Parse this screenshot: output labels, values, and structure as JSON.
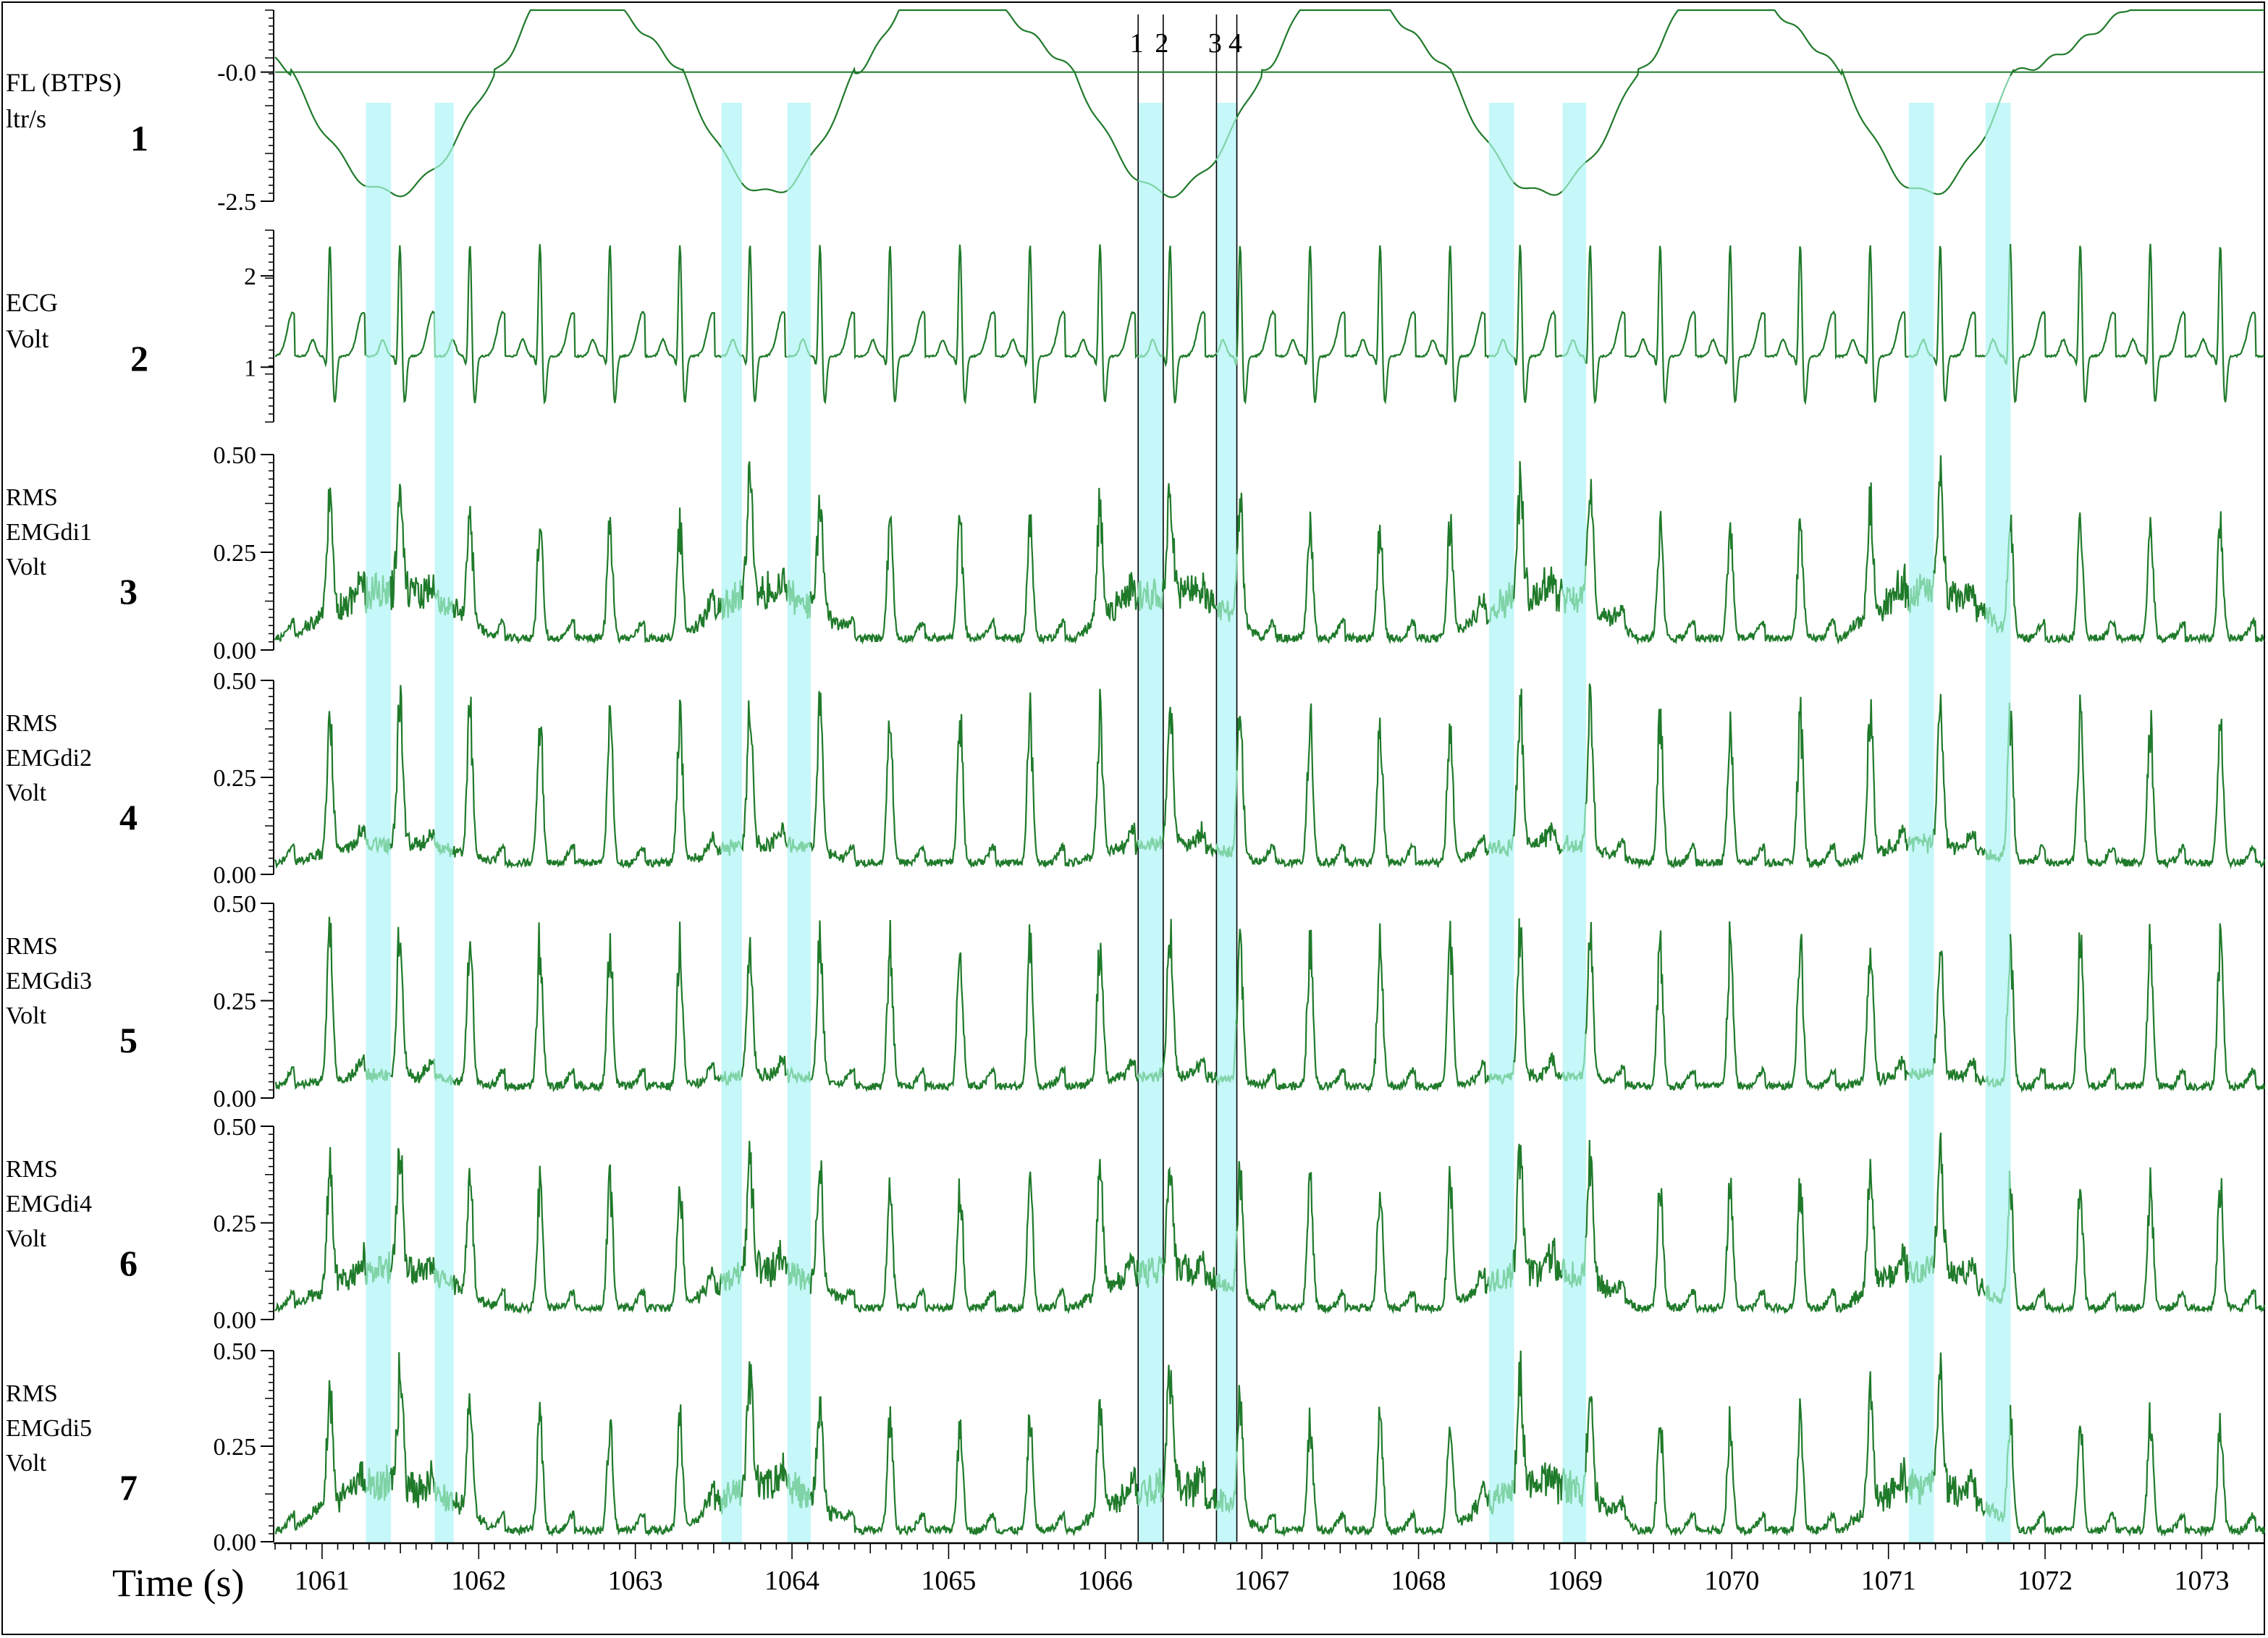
{
  "chart_data": {
    "type": "line",
    "title": "",
    "xlabel": "Time (s)",
    "xlim": [
      1060.7,
      1073.4
    ],
    "xticks": [
      1061,
      1062,
      1063,
      1064,
      1065,
      1066,
      1067,
      1068,
      1069,
      1070,
      1071,
      1072,
      1073
    ],
    "grid": false,
    "line_color": "#1f7a2a",
    "highlight_line_color": "#7fd3a6",
    "band_color": "#c6f7f9",
    "highlight_bands": [
      [
        1061.28,
        1061.44
      ],
      [
        1061.72,
        1061.84
      ],
      [
        1063.55,
        1063.68
      ],
      [
        1063.97,
        1064.12
      ],
      [
        1068.45,
        1068.61
      ],
      [
        1068.92,
        1069.07
      ],
      [
        1071.13,
        1071.29
      ],
      [
        1071.62,
        1071.78
      ],
      [
        1066.21,
        1066.37
      ],
      [
        1066.71,
        1066.84
      ]
    ],
    "markers": [
      {
        "label": "1",
        "x": 1066.21
      },
      {
        "label": "2",
        "x": 1066.37
      },
      {
        "label": "3",
        "x": 1066.71
      },
      {
        "label": "4",
        "x": 1066.84
      }
    ],
    "breaths": [
      {
        "insp_start": 1060.8,
        "insp_end": 1062.1
      },
      {
        "insp_start": 1063.3,
        "insp_end": 1064.4
      },
      {
        "insp_start": 1065.8,
        "insp_end": 1067.0
      },
      {
        "insp_start": 1068.2,
        "insp_end": 1069.4
      },
      {
        "insp_start": 1070.7,
        "insp_end": 1071.8
      }
    ],
    "heart_period_s": 0.447,
    "first_r_peak_s": 1061.05,
    "series": [
      {
        "index": "1",
        "name": "FL (BTPS)",
        "unit": "ltr/s",
        "ylim": [
          -2.5,
          1.2
        ],
        "ticks": [
          "-0.0",
          "-2.5"
        ],
        "tick_values": [
          0.0,
          -2.5
        ],
        "reference_line": 0.0,
        "kind": "flow"
      },
      {
        "index": "2",
        "name": "ECG",
        "unit": "Volt",
        "ylim": [
          0.4,
          2.5
        ],
        "ticks": [
          "2",
          "1"
        ],
        "tick_values": [
          2,
          1
        ],
        "kind": "ecg"
      },
      {
        "index": "3",
        "name": "RMS EMGdi1",
        "unit": "Volt",
        "ylim": [
          0.0,
          0.5
        ],
        "ticks": [
          "0.50",
          "0.25",
          "0.00"
        ],
        "tick_values": [
          0.5,
          0.25,
          0.0
        ],
        "kind": "emg",
        "cardiac_peak": 0.3,
        "breath_amp": 0.12
      },
      {
        "index": "4",
        "name": "RMS EMGdi2",
        "unit": "Volt",
        "ylim": [
          0.0,
          0.5
        ],
        "ticks": [
          "0.50",
          "0.25",
          "0.00"
        ],
        "tick_values": [
          0.5,
          0.25,
          0.0
        ],
        "kind": "emg",
        "cardiac_peak": 0.38,
        "breath_amp": 0.05
      },
      {
        "index": "5",
        "name": "RMS EMGdi3",
        "unit": "Volt",
        "ylim": [
          0.0,
          0.5
        ],
        "ticks": [
          "0.50",
          "0.25",
          "0.00"
        ],
        "tick_values": [
          0.5,
          0.25,
          0.0
        ],
        "kind": "emg",
        "cardiac_peak": 0.38,
        "breath_amp": 0.03
      },
      {
        "index": "6",
        "name": "RMS EMGdi4",
        "unit": "Volt",
        "ylim": [
          0.0,
          0.5
        ],
        "ticks": [
          "0.50",
          "0.25",
          "0.00"
        ],
        "tick_values": [
          0.5,
          0.25,
          0.0
        ],
        "kind": "emg",
        "cardiac_peak": 0.33,
        "breath_amp": 0.1
      },
      {
        "index": "7",
        "name": "RMS EMGdi5",
        "unit": "Volt",
        "ylim": [
          0.0,
          0.5
        ],
        "ticks": [
          "0.50",
          "0.25",
          "0.00"
        ],
        "tick_values": [
          0.5,
          0.25,
          0.0
        ],
        "kind": "emg",
        "cardiac_peak": 0.3,
        "breath_amp": 0.12
      }
    ]
  }
}
